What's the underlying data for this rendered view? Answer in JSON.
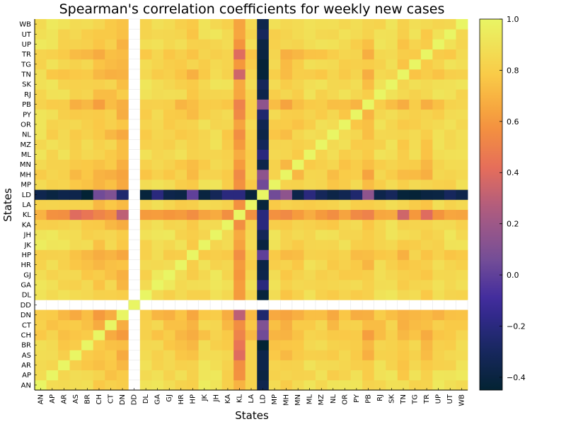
{
  "chart_data": {
    "type": "heatmap",
    "title": "Spearman's correlation coefficients for weekly new cases",
    "xlabel": "States",
    "ylabel": "States",
    "states": [
      "AN",
      "AP",
      "AR",
      "AS",
      "BR",
      "CH",
      "CT",
      "DN",
      "DD",
      "DL",
      "GA",
      "GJ",
      "HR",
      "HP",
      "JK",
      "JH",
      "KA",
      "KL",
      "LA",
      "LD",
      "MP",
      "MH",
      "MN",
      "ML",
      "MZ",
      "NL",
      "OR",
      "PY",
      "PB",
      "RJ",
      "SK",
      "TN",
      "TG",
      "TR",
      "UP",
      "UT",
      "WB"
    ],
    "colorbar": {
      "min": -0.45,
      "max": 1.0,
      "ticks": [
        -0.4,
        -0.2,
        0.0,
        0.2,
        0.4,
        0.6,
        0.8,
        1.0
      ],
      "tick_labels": [
        "−0.4",
        "−0.2",
        "0.0",
        "0.2",
        "0.4",
        "0.6",
        "0.8",
        "1.0"
      ]
    },
    "colormap": "thermal",
    "missing": [
      "DD"
    ],
    "base_correlation": 0.82,
    "row_effect": {
      "AN": 0.05,
      "AP": 0.03,
      "AR": 0.02,
      "AS": -0.03,
      "BR": -0.02,
      "CH": -0.07,
      "CT": -0.05,
      "DN": -0.1,
      "DL": 0.02,
      "GA": 0.04,
      "GJ": 0.02,
      "HR": 0.0,
      "HP": -0.04,
      "JK": 0.03,
      "JH": 0.04,
      "KA": 0.0,
      "KL": -0.22,
      "LA": 0.0,
      "LD": -1.2,
      "MP": 0.0,
      "MH": -0.05,
      "MN": -0.04,
      "ML": 0.02,
      "MZ": 0.02,
      "NL": 0.0,
      "OR": 0.0,
      "PY": 0.0,
      "PB": -0.08,
      "RJ": 0.02,
      "SK": 0.03,
      "TN": -0.04,
      "TG": 0.0,
      "TR": -0.04,
      "UP": 0.02,
      "UT": 0.03,
      "WB": 0.04
    },
    "overrides": [
      [
        "KL",
        "LD",
        -0.2
      ],
      [
        "CH",
        "LD",
        0.05
      ],
      [
        "CT",
        "LD",
        0.1
      ],
      [
        "DN",
        "LD",
        -0.25
      ],
      [
        "MP",
        "LD",
        0.05
      ],
      [
        "MH",
        "LD",
        0.15
      ],
      [
        "PB",
        "LD",
        0.15
      ],
      [
        "PY",
        "LD",
        -0.25
      ],
      [
        "KA",
        "LD",
        -0.2
      ],
      [
        "HP",
        "LD",
        0.0
      ],
      [
        "ML",
        "LD",
        -0.2
      ],
      [
        "GA",
        "LD",
        -0.2
      ],
      [
        "DN",
        "KL",
        0.3
      ],
      [
        "AS",
        "KL",
        0.4
      ],
      [
        "BR",
        "KL",
        0.45
      ],
      [
        "TN",
        "KL",
        0.35
      ],
      [
        "TR",
        "KL",
        0.4
      ]
    ]
  }
}
